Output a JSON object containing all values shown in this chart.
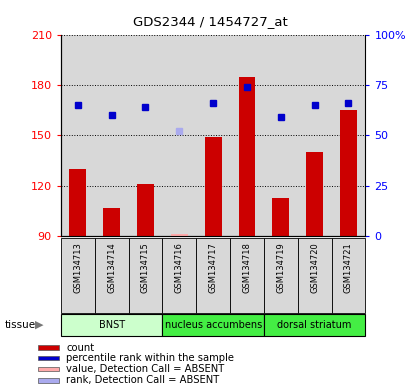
{
  "title": "GDS2344 / 1454727_at",
  "samples": [
    "GSM134713",
    "GSM134714",
    "GSM134715",
    "GSM134716",
    "GSM134717",
    "GSM134718",
    "GSM134719",
    "GSM134720",
    "GSM134721"
  ],
  "counts": [
    130,
    107,
    121,
    null,
    149,
    185,
    113,
    140,
    165
  ],
  "counts_absent": [
    null,
    null,
    null,
    91,
    null,
    null,
    null,
    null,
    null
  ],
  "ranks": [
    65,
    60,
    64,
    null,
    66,
    74,
    59,
    65,
    66
  ],
  "ranks_absent": [
    null,
    null,
    null,
    52,
    null,
    null,
    null,
    null,
    null
  ],
  "ylim_left": [
    90,
    210
  ],
  "ylim_right": [
    0,
    100
  ],
  "yticks_left": [
    90,
    120,
    150,
    180,
    210
  ],
  "yticks_right": [
    0,
    25,
    50,
    75,
    100
  ],
  "ytick_labels_left": [
    "90",
    "120",
    "150",
    "180",
    "210"
  ],
  "ytick_labels_right": [
    "0",
    "25",
    "50",
    "75",
    "100%"
  ],
  "tissues": [
    {
      "label": "BNST",
      "start": 0,
      "end": 3,
      "color": "#ccffcc"
    },
    {
      "label": "nucleus accumbens",
      "start": 3,
      "end": 6,
      "color": "#44ee44"
    },
    {
      "label": "dorsal striatum",
      "start": 6,
      "end": 9,
      "color": "#44ee44"
    }
  ],
  "bar_color": "#cc0000",
  "bar_absent_color": "#ffaaaa",
  "rank_color": "#0000cc",
  "rank_absent_color": "#aaaaee",
  "bar_width": 0.5,
  "legend_items": [
    {
      "color": "#cc0000",
      "label": "count"
    },
    {
      "color": "#0000cc",
      "label": "percentile rank within the sample"
    },
    {
      "color": "#ffaaaa",
      "label": "value, Detection Call = ABSENT"
    },
    {
      "color": "#aaaaee",
      "label": "rank, Detection Call = ABSENT"
    }
  ],
  "tissue_label": "tissue"
}
